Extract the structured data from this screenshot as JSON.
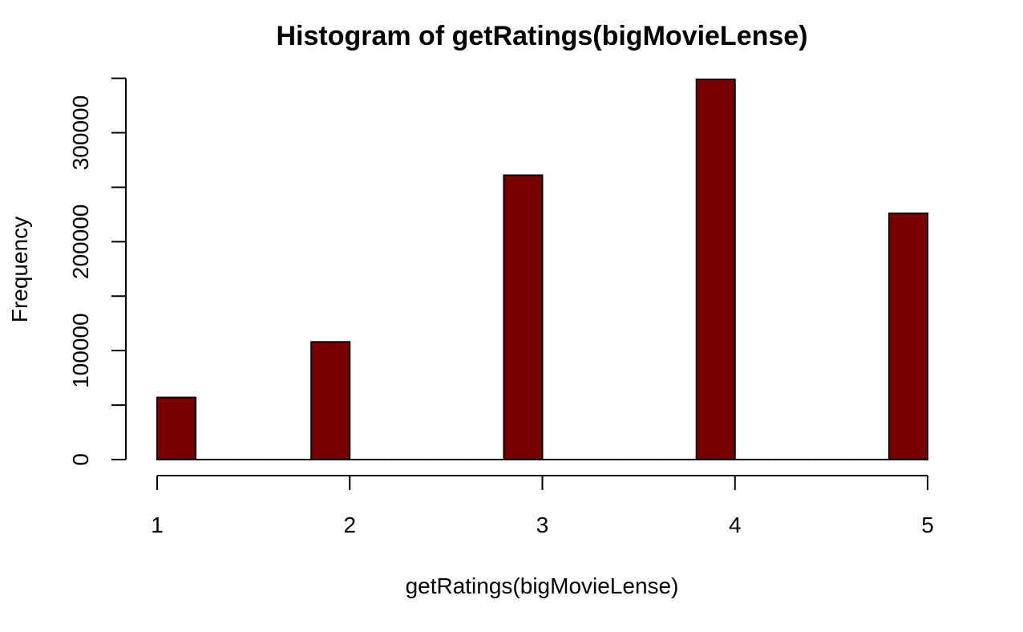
{
  "chart_data": {
    "type": "bar",
    "title": "Histogram of getRatings(bigMovieLense)",
    "xlabel": "getRatings(bigMovieLense)",
    "ylabel": "Frequency",
    "bins": [
      {
        "from": 1.0,
        "to": 1.2,
        "value": 57000
      },
      {
        "from": 1.2,
        "to": 1.4,
        "value": 0
      },
      {
        "from": 1.4,
        "to": 1.6,
        "value": 0
      },
      {
        "from": 1.6,
        "to": 1.8,
        "value": 0
      },
      {
        "from": 1.8,
        "to": 2.0,
        "value": 108000
      },
      {
        "from": 2.0,
        "to": 2.2,
        "value": 0
      },
      {
        "from": 2.2,
        "to": 2.4,
        "value": 0
      },
      {
        "from": 2.4,
        "to": 2.6,
        "value": 0
      },
      {
        "from": 2.6,
        "to": 2.8,
        "value": 0
      },
      {
        "from": 2.8,
        "to": 3.0,
        "value": 261000
      },
      {
        "from": 3.0,
        "to": 3.2,
        "value": 0
      },
      {
        "from": 3.2,
        "to": 3.4,
        "value": 0
      },
      {
        "from": 3.4,
        "to": 3.6,
        "value": 0
      },
      {
        "from": 3.6,
        "to": 3.8,
        "value": 0
      },
      {
        "from": 3.8,
        "to": 4.0,
        "value": 349000
      },
      {
        "from": 4.0,
        "to": 4.2,
        "value": 0
      },
      {
        "from": 4.2,
        "to": 4.4,
        "value": 0
      },
      {
        "from": 4.4,
        "to": 4.6,
        "value": 0
      },
      {
        "from": 4.6,
        "to": 4.8,
        "value": 0
      },
      {
        "from": 4.8,
        "to": 5.0,
        "value": 226000
      }
    ],
    "xlim": [
      1,
      5
    ],
    "ylim": [
      0,
      349000
    ],
    "x_ticks": [
      1,
      2,
      3,
      4,
      5
    ],
    "y_ticks": [
      0,
      50000,
      100000,
      150000,
      200000,
      250000,
      300000,
      350000
    ],
    "y_tick_labels": [
      {
        "value": 0,
        "label": "0"
      },
      {
        "value": 100000,
        "label": "100000"
      },
      {
        "value": 200000,
        "label": "200000"
      },
      {
        "value": 300000,
        "label": "300000"
      }
    ],
    "bar_color": "#780000",
    "grid": false,
    "legend": "none"
  }
}
